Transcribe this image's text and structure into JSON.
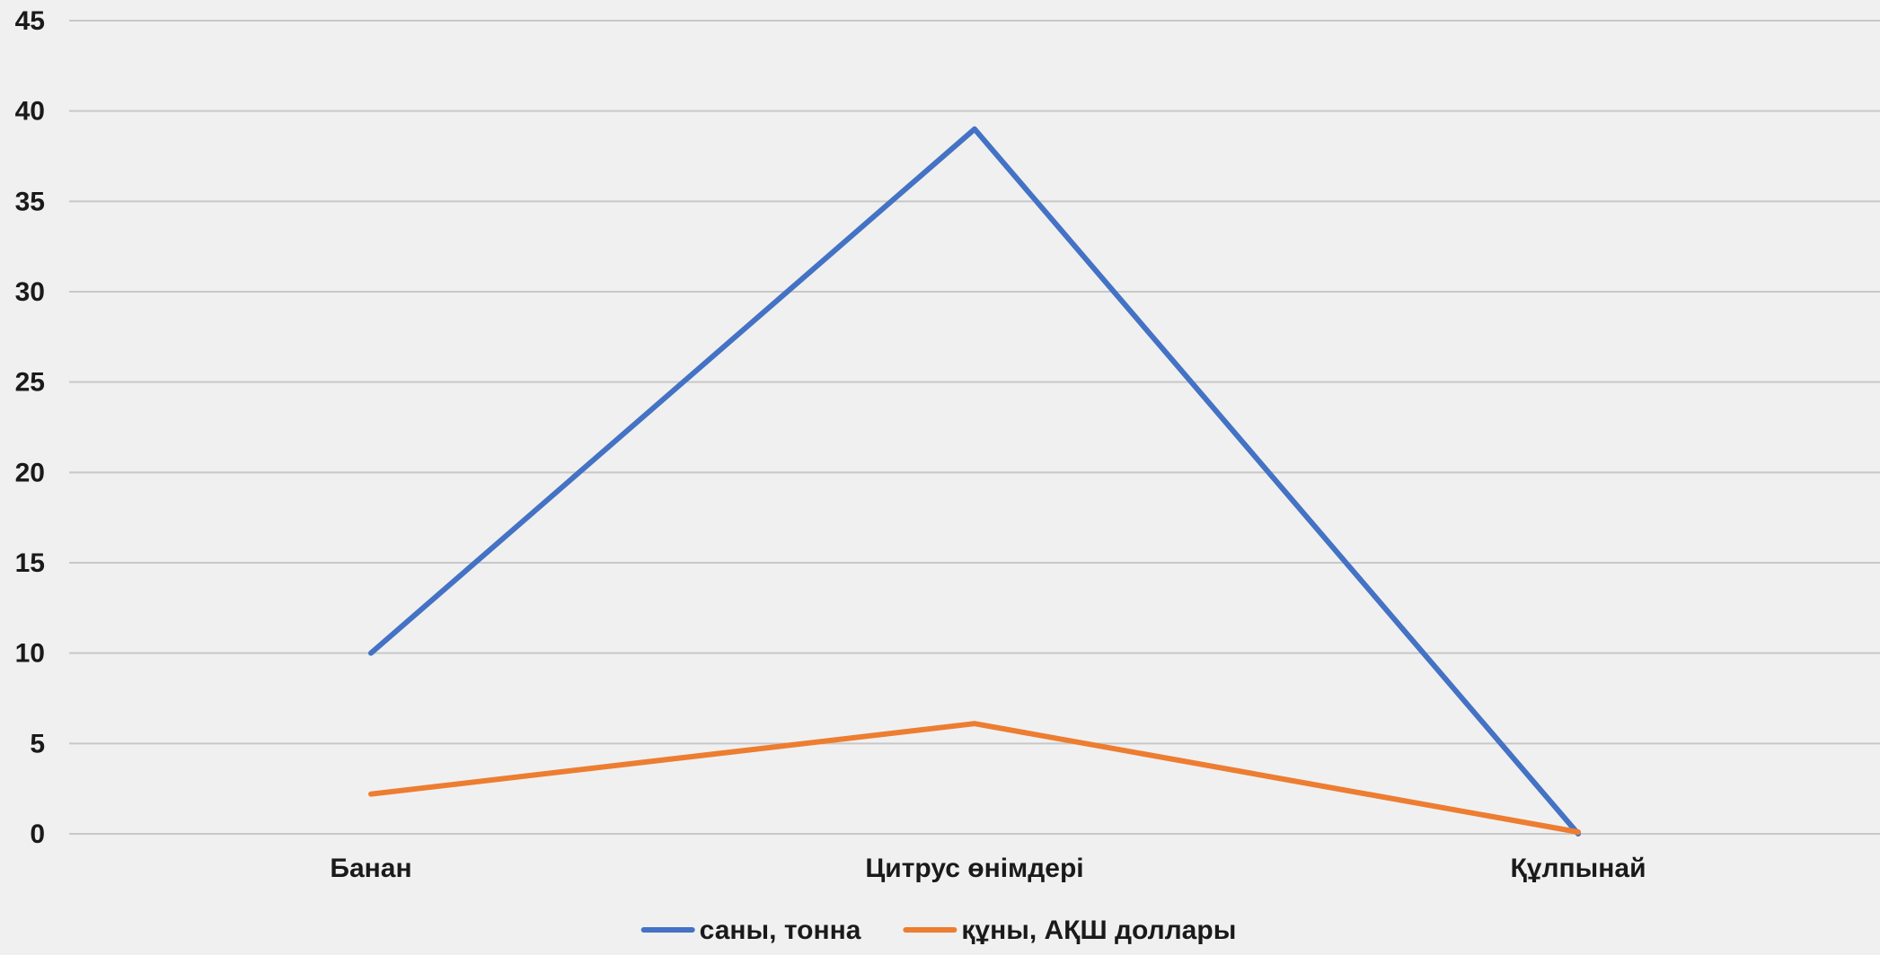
{
  "chart_data": {
    "type": "line",
    "categories": [
      "Банан",
      "Цитрус өнімдері",
      "Құлпынай"
    ],
    "series": [
      {
        "name": "саны, тонна",
        "values": [
          10,
          39,
          0
        ],
        "color": "#4472c4"
      },
      {
        "name": "құны, АҚШ доллары",
        "values": [
          2.2,
          6.1,
          0.1
        ],
        "color": "#ed7d31"
      }
    ],
    "ylim": [
      0,
      45
    ],
    "yticks": [
      0,
      5,
      10,
      15,
      20,
      25,
      30,
      35,
      40,
      45
    ],
    "grid": true,
    "legend_position": "bottom",
    "title": "",
    "xlabel": "",
    "ylabel": ""
  },
  "colors": {
    "background": "#f0f0f0",
    "gridline": "#c8c8c8",
    "text": "#1a1a1a"
  }
}
